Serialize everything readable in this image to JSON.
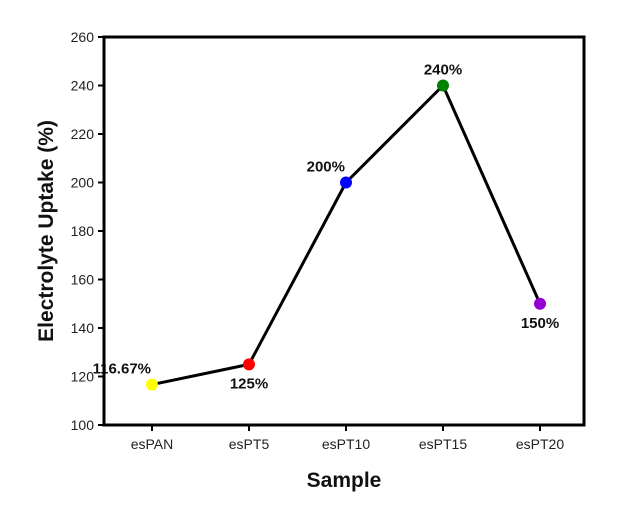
{
  "chart_data": {
    "type": "line",
    "categories": [
      "esPAN",
      "esPT5",
      "esPT10",
      "esPT15",
      "esPT20"
    ],
    "series": [
      {
        "values": [
          116.67,
          125,
          200,
          240,
          150
        ],
        "point_colors": [
          "#ffff00",
          "#ff0000",
          "#0000ff",
          "#008000",
          "#9400d3"
        ],
        "line_color": "#000000"
      }
    ],
    "data_labels": [
      "116.67%",
      "125%",
      "200%",
      "240%",
      "150%"
    ],
    "label_positions": [
      "above-left",
      "below",
      "above-left",
      "above",
      "below"
    ],
    "xlabel": "Sample",
    "ylabel": "Electrolyte Uptake (%)",
    "ylim": [
      100,
      260
    ],
    "yticks": [
      100,
      120,
      140,
      160,
      180,
      200,
      220,
      240,
      260
    ],
    "grid": false,
    "legend": "none"
  }
}
